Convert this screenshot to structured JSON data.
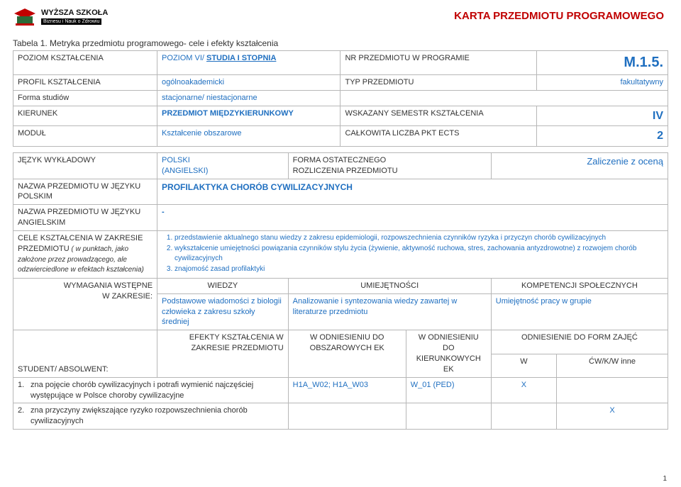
{
  "header": {
    "logo_line1": "WYŻSZA SZKOŁA",
    "logo_line2": "Biznesu i Nauk o Zdrowiu",
    "doc_title": "KARTA PRZEDMIOTU PROGRAMOWEGO"
  },
  "caption": "Tabela 1. Metryka przedmiotu programowego- cele i efekty kształcenia",
  "colors": {
    "header_red": "#c00000",
    "label_blue": "#1f6fc0",
    "grid_border": "#b7b7b7"
  },
  "table1": {
    "r1": {
      "c1": "POZIOM KSZTAŁCENIA",
      "c2_pre": "POZIOM VI/ ",
      "c2_bold": "STUDIA I STOPNIA",
      "c3": "NR PRZEDMIOTU W PROGRAMIE",
      "c4": "M.1.5."
    },
    "r2": {
      "c1": "PROFIL KSZTAŁCENIA",
      "c2": "ogólnoakademicki",
      "c3": "TYP PRZEDMIOTU",
      "c4": "fakultatywny"
    },
    "r3": {
      "c1": "Forma studiów",
      "c2": "stacjonarne/ niestacjonarne"
    },
    "r4": {
      "c1": "KIERUNEK",
      "c2": "PRZEDMIOT MIĘDZYKIERUNKOWY",
      "c3": "WSKAZANY SEMESTR KSZTAŁCENIA",
      "c4": "IV"
    },
    "r5": {
      "c1": "MODUŁ",
      "c2": "Kształcenie obszarowe",
      "c3": "CAŁKOWITA LICZBA PKT ECTS",
      "c4": "2"
    }
  },
  "table2": {
    "r1": {
      "c1": "JĘZYK WYKŁADOWY",
      "c2a": "POLSKI",
      "c2b": "(ANGIELSKI)",
      "c3a": "FORMA OSTATECZNEGO",
      "c3b": "ROZLICZENIA PRZEDMIOTU",
      "c4": "Zaliczenie z oceną"
    },
    "r2": {
      "c1": "NAZWA PRZEDMIOTU W JĘZYKU POLSKIM",
      "c2": "PROFILAKTYKA CHORÓB CYWILIZACYJNYCH"
    },
    "r3": {
      "c1": "NAZWA PRZEDMIOTU W JĘZYKU ANGIELSKIM",
      "c2": "-"
    },
    "r4": {
      "c1a": "CELE KSZTAŁCENIA W ZAKRESIE PRZEDMIOTU",
      "c1b": " ( w punktach, jako założone przez prowadzącego, ale odzwierciedlone w efektach kształcenia)",
      "items": [
        "przedstawienie aktualnego stanu wiedzy z zakresu epidemiologii, rozpowszechnienia czynników ryzyka  i przyczyn chorób cywilizacyjnych",
        "wykształcenie umiejętności powiązania czynników stylu życia (żywienie, aktywność ruchowa, stres, zachowania antyzdrowotne) z rozwojem chorób cywilizacyjnych",
        "znajomość zasad profilaktyki"
      ]
    },
    "r5": {
      "c1a": "WYMAGANIA WSTĘPNE",
      "c1b": "W ZAKRESIE:",
      "h_wiedzy": "WIEDZY",
      "wiedzy": "Podstawowe wiadomości z biologii człowieka z zakresu szkoły średniej",
      "h_umiej": "UMIEJĘTNOŚCI",
      "umiej": "Analizowanie i syntezowania wiedzy zawartej w literaturze przedmiotu",
      "h_komp": "KOMPETENCJI  SPOŁECZNYCH",
      "komp": "Umiejętność pracy w grupie"
    },
    "r6": {
      "c1": "STUDENT/ ABSOLWENT:",
      "eff_hdr": "EFEKTY KSZTAŁCENIA W ZAKRESIE PRZEDMIOTU",
      "obszar_a": "W ODNIESIENIU DO",
      "obszar_b": "OBSZAROWYCH EK",
      "kier_a": "W ODNIESIENIU",
      "kier_b": "DO",
      "kier_c": "KIERUNKOWYCH",
      "kier_d": "EK",
      "form_hdr": "ODNIESIENIE DO FORM ZAJĘĆ",
      "w": "W",
      "cwk": "ĆW/K/W  inne"
    },
    "eff_rows": [
      {
        "n": "1.",
        "text": "zna pojęcie chorób cywilizacyjnych i potrafi wymienić najczęściej występujące w Polsce choroby cywilizacyjne",
        "obszar": "H1A_W02; H1A_W03",
        "kier": "W_01 (PED)",
        "w": "X",
        "cwk": ""
      },
      {
        "n": "2.",
        "text": "zna przyczyny zwiększające ryzyko rozpowszechnienia chorób cywilizacyjnych",
        "obszar": "",
        "kier": "",
        "w": "",
        "cwk": "X"
      }
    ]
  },
  "page_number": "1"
}
